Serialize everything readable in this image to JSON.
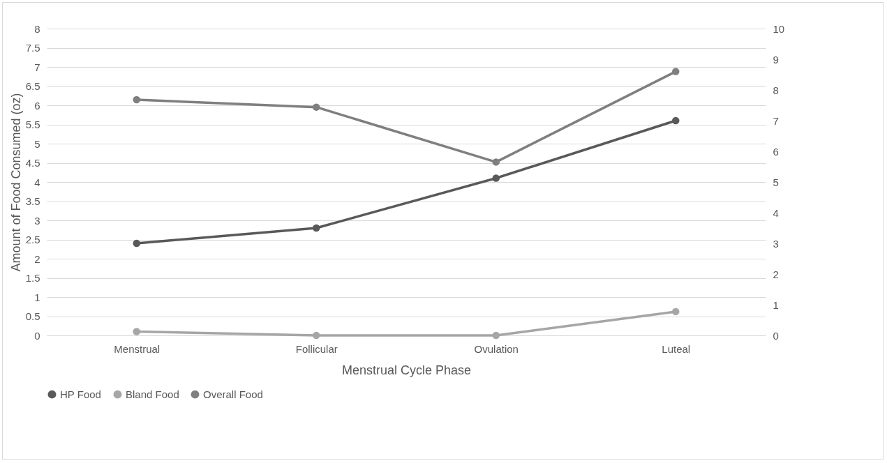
{
  "chart_data": {
    "type": "line",
    "xlabel": "Menstrual Cycle Phase",
    "ylabel": "Amount of Food Consumed (oz)",
    "categories": [
      "Menstrual",
      "Follicular",
      "Ovulation",
      "Luteal"
    ],
    "series": [
      {
        "name": "HP Food",
        "color": "#595959",
        "values": [
          2.4,
          2.8,
          4.1,
          5.6
        ]
      },
      {
        "name": "Bland Food",
        "color": "#a6a6a6",
        "values": [
          0.1,
          0,
          0,
          0.62
        ]
      },
      {
        "name": "Overall Food",
        "color": "#7f7f7f",
        "axis": "y2",
        "values": [
          7.68,
          7.44,
          5.65,
          8.6
        ]
      }
    ],
    "ylim": [
      0,
      8
    ],
    "yticks": [
      0,
      0.5,
      1,
      1.5,
      2,
      2.5,
      3,
      3.5,
      4,
      4.5,
      5,
      5.5,
      6,
      6.5,
      7,
      7.5,
      8
    ],
    "y2lim": [
      0,
      10
    ],
    "y2ticks": [
      0,
      1,
      2,
      3,
      4,
      5,
      6,
      7,
      8,
      9,
      10
    ],
    "grid": "y",
    "legend": "bottom",
    "marker": "circle",
    "line_style": "solid"
  }
}
